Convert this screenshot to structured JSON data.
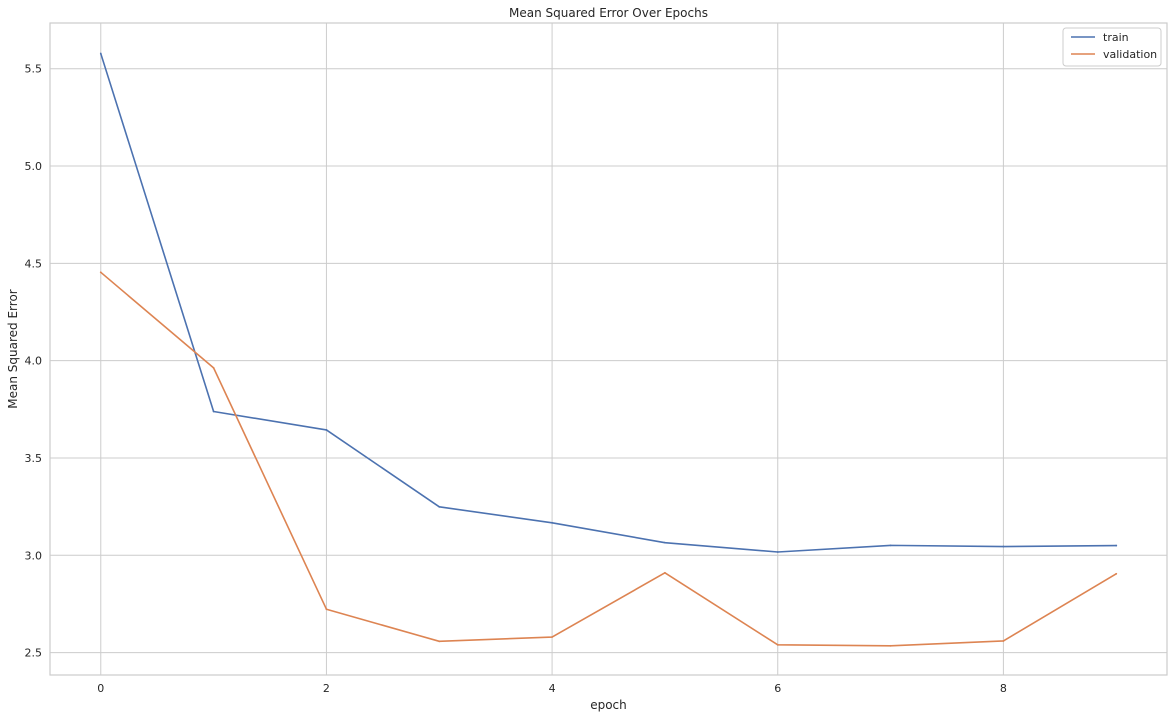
{
  "chart_data": {
    "type": "line",
    "title": "Mean Squared Error Over Epochs",
    "xlabel": "epoch",
    "ylabel": "Mean Squared Error",
    "x": [
      0,
      1,
      2,
      3,
      4,
      5,
      6,
      7,
      8,
      9
    ],
    "xlim": [
      -0.45,
      9.45
    ],
    "ylim": [
      2.385,
      5.735
    ],
    "xticks": [
      0,
      2,
      4,
      6,
      8
    ],
    "xtick_labels": [
      "0",
      "2",
      "4",
      "6",
      "8"
    ],
    "yticks": [
      2.5,
      3.0,
      3.5,
      4.0,
      4.5,
      5.0,
      5.5
    ],
    "ytick_labels": [
      "2.5",
      "3.0",
      "3.5",
      "4.0",
      "4.5",
      "5.0",
      "5.5"
    ],
    "grid": true,
    "legend_position": "top-right",
    "series": [
      {
        "name": "train",
        "color": "#4c72b0",
        "values": [
          5.578,
          3.739,
          3.644,
          3.249,
          3.167,
          3.065,
          3.017,
          3.051,
          3.045,
          3.05
        ]
      },
      {
        "name": "validation",
        "color": "#dd8452",
        "values": [
          4.454,
          3.963,
          2.723,
          2.558,
          2.58,
          2.91,
          2.54,
          2.535,
          2.56,
          2.905
        ]
      }
    ]
  }
}
